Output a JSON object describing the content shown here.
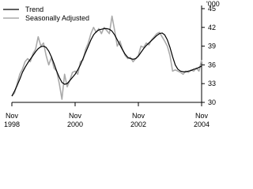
{
  "chart_data": {
    "type": "line",
    "y_label": "'000",
    "categories": [
      "Nov 1998",
      null,
      null,
      null,
      null,
      null,
      null,
      null,
      null,
      null,
      null,
      null,
      null,
      null,
      null,
      null,
      null,
      null,
      null,
      null,
      null,
      null,
      null,
      null,
      "Nov 2000",
      null,
      null,
      null,
      null,
      null,
      null,
      null,
      null,
      null,
      null,
      null,
      null,
      null,
      null,
      null,
      null,
      null,
      null,
      null,
      null,
      null,
      null,
      null,
      "Nov 2002",
      null,
      null,
      null,
      null,
      null,
      null,
      null,
      null,
      null,
      null,
      null,
      null,
      null,
      null,
      null,
      null,
      null,
      null,
      null,
      null,
      null,
      null,
      null,
      "Nov 2004"
    ],
    "series": [
      {
        "name": "Trend",
        "color": "#000000",
        "width": 1.2,
        "values": [
          31.0,
          31.8,
          32.7,
          33.7,
          34.8,
          35.6,
          36.3,
          36.9,
          37.5,
          38.1,
          38.6,
          38.9,
          39.0,
          38.8,
          38.2,
          37.3,
          36.2,
          35.0,
          34.0,
          33.2,
          32.9,
          33.0,
          33.5,
          34.0,
          34.5,
          35.2,
          36.0,
          37.0,
          38.0,
          39.0,
          40.0,
          40.8,
          41.3,
          41.6,
          41.7,
          41.8,
          41.8,
          41.7,
          41.4,
          40.8,
          40.0,
          39.2,
          38.4,
          37.7,
          37.2,
          37.0,
          36.9,
          37.0,
          37.4,
          38.0,
          38.6,
          39.1,
          39.5,
          39.9,
          40.3,
          40.7,
          41.0,
          41.1,
          40.8,
          40.0,
          38.8,
          37.3,
          36.0,
          35.3,
          35.0,
          34.9,
          34.9,
          35.0,
          35.1,
          35.3,
          35.4,
          35.6,
          35.8
        ]
      },
      {
        "name": "Seasonally Adjusted",
        "color": "#aaaaaa",
        "width": 1.6,
        "values": [
          31.0,
          31.5,
          33.0,
          34.5,
          35.3,
          36.5,
          37.0,
          36.5,
          37.8,
          38.5,
          40.5,
          39.0,
          39.5,
          37.5,
          36.0,
          37.2,
          35.5,
          35.0,
          33.0,
          30.5,
          34.5,
          32.5,
          33.5,
          34.8,
          35.0,
          34.5,
          36.5,
          36.8,
          38.5,
          39.5,
          41.0,
          42.0,
          41.2,
          41.8,
          41.0,
          42.0,
          41.5,
          41.0,
          43.8,
          41.5,
          39.0,
          39.8,
          38.5,
          37.5,
          37.0,
          37.2,
          36.5,
          37.0,
          37.5,
          39.0,
          38.8,
          39.5,
          39.2,
          40.0,
          40.5,
          41.0,
          41.2,
          40.5,
          39.8,
          39.0,
          37.5,
          35.0,
          35.2,
          35.0,
          34.8,
          34.5,
          35.0,
          34.8,
          35.2,
          35.0,
          35.5,
          35.0,
          36.8
        ]
      }
    ],
    "ylim": [
      30,
      45.5
    ],
    "yticks": [
      30,
      33,
      36,
      39,
      42,
      45
    ]
  }
}
